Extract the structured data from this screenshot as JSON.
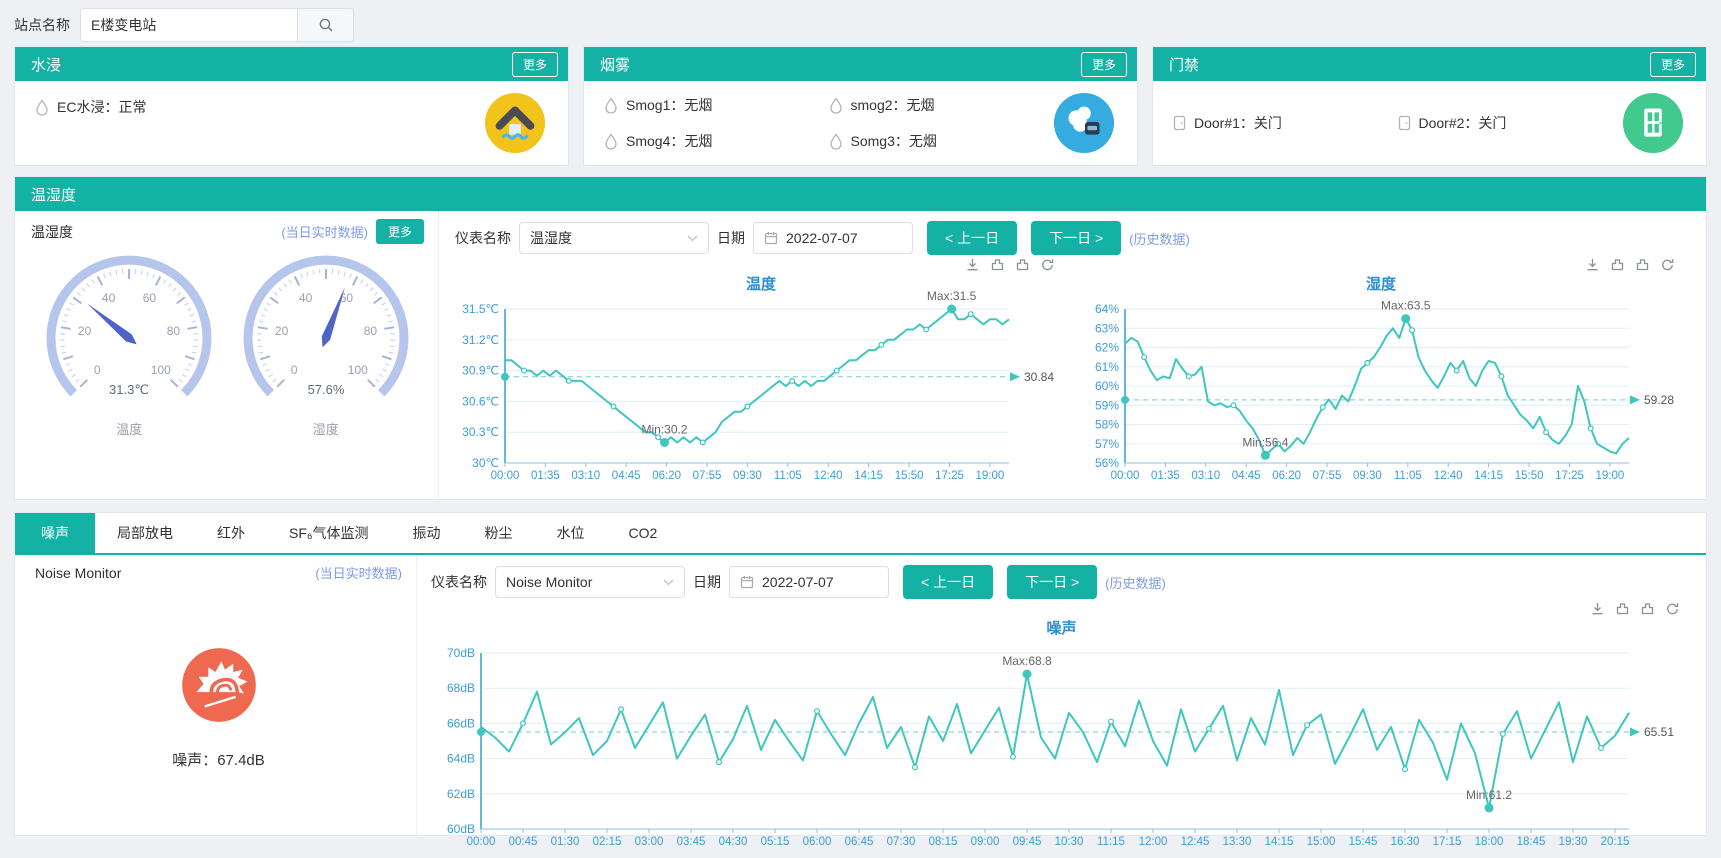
{
  "colors": {
    "teal": "#14b1a5",
    "link_blue": "#7e9bea",
    "chart_line": "#3fc6bf",
    "chart_avg_line": "#6fd2ca",
    "chart_title_blue": "#2b8fd6",
    "axis_text_blue": "#3a9fd8",
    "annotation_gray": "#666666",
    "water_badge": "#f2c31b",
    "smoke_badge": "#35abe0",
    "door_badge": "#41c98e",
    "noise_badge": "#ee6950",
    "gauge_ring": "#b6c5ec",
    "gauge_needle": "#5063c8"
  },
  "topbar": {
    "site_label": "站点名称",
    "site_value": "E楼变电站"
  },
  "cards": [
    {
      "title": "水浸",
      "more": "更多",
      "items": [
        {
          "text": "EC水浸：正常"
        }
      ]
    },
    {
      "title": "烟雾",
      "more": "更多",
      "items": [
        {
          "text": "Smog1：无烟"
        },
        {
          "text": "smog2：无烟"
        },
        {
          "text": "Smog4：无烟"
        },
        {
          "text": "Somg3：无烟"
        }
      ]
    },
    {
      "title": "门禁",
      "more": "更多",
      "items": [
        {
          "text": "Door#1：关门"
        },
        {
          "text": "Door#2：关门"
        }
      ]
    }
  ],
  "th": {
    "section_title": "温湿度",
    "panel_title": "温湿度",
    "realtime": "(当日实时数据)",
    "more": "更多",
    "gauge_ticks": [
      0,
      20,
      40,
      60,
      80,
      100
    ],
    "gauges": [
      {
        "value": 31.3,
        "display": "31.3℃",
        "label": "温度"
      },
      {
        "value": 57.6,
        "display": "57.6%",
        "label": "湿度"
      }
    ],
    "controls": {
      "meter_label": "仪表名称",
      "meter_value": "温湿度",
      "date_label": "日期",
      "date_value": "2022-07-07",
      "prev": "< 上一日",
      "next": "下一日 >",
      "history": "(历史数据)"
    }
  },
  "tabs": {
    "active": 0,
    "items": [
      "噪声",
      "局部放电",
      "红外",
      "SF₆气体监测",
      "振动",
      "粉尘",
      "水位",
      "CO2"
    ]
  },
  "noise": {
    "panel_title": "Noise Monitor",
    "realtime": "(当日实时数据)",
    "value_text": "噪声：67.4dB",
    "controls": {
      "meter_label": "仪表名称",
      "meter_value": "Noise Monitor",
      "date_label": "日期",
      "date_value": "2022-07-07",
      "prev": "< 上一日",
      "next": "下一日 >",
      "history": "(历史数据)"
    }
  },
  "chart_data": [
    {
      "id": "temperature",
      "type": "line",
      "title": "温度",
      "ylim": [
        30,
        31.5
      ],
      "yticks": [
        {
          "v": 31.5,
          "label": "31.5℃"
        },
        {
          "v": 31.2,
          "label": "31.2℃"
        },
        {
          "v": 30.9,
          "label": "30.9℃"
        },
        {
          "v": 30.6,
          "label": "30.6℃"
        },
        {
          "v": 30.3,
          "label": "30.3℃"
        },
        {
          "v": 30,
          "label": "30℃"
        }
      ],
      "xticks": [
        "00:00",
        "01:35",
        "03:10",
        "04:45",
        "06:20",
        "07:55",
        "09:30",
        "11:05",
        "12:40",
        "14:15",
        "15:50",
        "17:25",
        "19:00"
      ],
      "x_end_min": 1185,
      "step_min": 15,
      "avg": 30.84,
      "avg_label": "30.84",
      "max_label": "Max:31.5",
      "min_label": "Min:30.2",
      "values": [
        31.0,
        31.0,
        30.95,
        30.9,
        30.9,
        30.85,
        30.9,
        30.85,
        30.9,
        30.85,
        30.8,
        30.8,
        30.8,
        30.75,
        30.7,
        30.65,
        30.6,
        30.55,
        30.5,
        30.45,
        30.4,
        30.35,
        30.3,
        30.3,
        30.25,
        30.2,
        30.25,
        30.2,
        30.25,
        30.2,
        30.25,
        30.2,
        30.25,
        30.3,
        30.4,
        30.45,
        30.5,
        30.5,
        30.55,
        30.6,
        30.65,
        30.7,
        30.75,
        30.8,
        30.75,
        30.8,
        30.75,
        30.8,
        30.75,
        30.8,
        30.8,
        30.85,
        30.9,
        30.95,
        31.0,
        31.0,
        31.05,
        31.1,
        31.1,
        31.15,
        31.2,
        31.2,
        31.25,
        31.3,
        31.3,
        31.35,
        31.3,
        31.35,
        31.4,
        31.45,
        31.5,
        31.4,
        31.4,
        31.45,
        31.4,
        31.35,
        31.4,
        31.4,
        31.35,
        31.4
      ]
    },
    {
      "id": "humidity",
      "type": "line",
      "title": "湿度",
      "ylim": [
        56,
        64
      ],
      "yticks": [
        {
          "v": 64,
          "label": "64%"
        },
        {
          "v": 63,
          "label": "63%"
        },
        {
          "v": 62,
          "label": "62%"
        },
        {
          "v": 61,
          "label": "61%"
        },
        {
          "v": 60,
          "label": "60%"
        },
        {
          "v": 59,
          "label": "59%"
        },
        {
          "v": 58,
          "label": "58%"
        },
        {
          "v": 57,
          "label": "57%"
        },
        {
          "v": 56,
          "label": "56%"
        }
      ],
      "xticks": [
        "00:00",
        "01:35",
        "03:10",
        "04:45",
        "06:20",
        "07:55",
        "09:30",
        "11:05",
        "12:40",
        "14:15",
        "15:50",
        "17:25",
        "19:00"
      ],
      "x_end_min": 1185,
      "step_min": 15,
      "avg": 59.28,
      "avg_label": "59.28",
      "max_label": "Max:63.5",
      "min_label": "Min:56.4",
      "values": [
        62.2,
        62.5,
        62.3,
        61.5,
        60.8,
        60.3,
        60.5,
        60.4,
        61.4,
        60.9,
        60.5,
        60.6,
        61.0,
        59.2,
        59.0,
        59.1,
        58.9,
        59.0,
        58.7,
        58.2,
        57.8,
        57.2,
        56.4,
        56.7,
        57.0,
        56.6,
        56.9,
        57.3,
        57.0,
        57.6,
        58.3,
        58.9,
        59.3,
        58.8,
        59.5,
        59.2,
        60.0,
        60.9,
        61.2,
        61.5,
        62.0,
        62.6,
        63.0,
        62.5,
        63.5,
        62.9,
        61.5,
        60.8,
        60.3,
        59.9,
        60.5,
        61.2,
        60.8,
        61.3,
        60.4,
        60.0,
        60.8,
        61.3,
        61.2,
        60.5,
        59.5,
        59.0,
        58.5,
        58.2,
        57.8,
        58.4,
        57.6,
        57.2,
        57.0,
        57.4,
        58.0,
        60.0,
        59.2,
        57.8,
        57.0,
        56.8,
        56.6,
        56.5,
        57.0,
        57.3
      ]
    },
    {
      "id": "noise",
      "type": "line",
      "title": "噪声",
      "ylim": [
        60,
        70
      ],
      "yticks": [
        {
          "v": 70,
          "label": "70dB"
        },
        {
          "v": 68,
          "label": "68dB"
        },
        {
          "v": 66,
          "label": "66dB"
        },
        {
          "v": 64,
          "label": "64dB"
        },
        {
          "v": 62,
          "label": "62dB"
        },
        {
          "v": 60,
          "label": "60dB"
        }
      ],
      "xticks": [
        "00:00",
        "00:45",
        "01:30",
        "02:15",
        "03:00",
        "03:45",
        "04:30",
        "05:15",
        "06:00",
        "06:45",
        "07:30",
        "08:15",
        "09:00",
        "09:45",
        "10:30",
        "11:15",
        "12:00",
        "12:45",
        "13:30",
        "14:15",
        "15:00",
        "15:45",
        "16:30",
        "17:15",
        "18:00",
        "18:45",
        "19:30",
        "20:15"
      ],
      "x_end_min": 1230,
      "step_min": 15,
      "avg": 65.51,
      "avg_label": "65.51",
      "max_label": "Max:68.8",
      "min_label": "Min:61.2",
      "values": [
        65.8,
        65.2,
        64.4,
        66.0,
        67.8,
        64.8,
        65.5,
        66.3,
        64.2,
        65.0,
        66.8,
        64.6,
        65.9,
        67.2,
        64.0,
        65.3,
        66.5,
        63.8,
        65.1,
        67.0,
        64.5,
        66.2,
        65.0,
        63.9,
        66.7,
        65.4,
        64.2,
        66.0,
        67.5,
        64.6,
        65.8,
        63.5,
        66.4,
        65.0,
        67.1,
        64.3,
        65.6,
        66.9,
        64.1,
        68.8,
        65.2,
        64.0,
        66.6,
        65.5,
        63.8,
        66.1,
        64.7,
        67.3,
        65.0,
        63.6,
        66.8,
        64.4,
        65.7,
        67.0,
        63.9,
        66.3,
        64.8,
        67.9,
        64.2,
        65.9,
        66.5,
        63.7,
        65.2,
        66.8,
        64.5,
        65.8,
        63.4,
        66.2,
        64.9,
        62.8,
        66.0,
        64.3,
        61.2,
        65.4,
        66.7,
        64.0,
        65.6,
        67.2,
        63.8,
        66.4,
        64.6,
        65.3,
        66.6
      ]
    }
  ]
}
